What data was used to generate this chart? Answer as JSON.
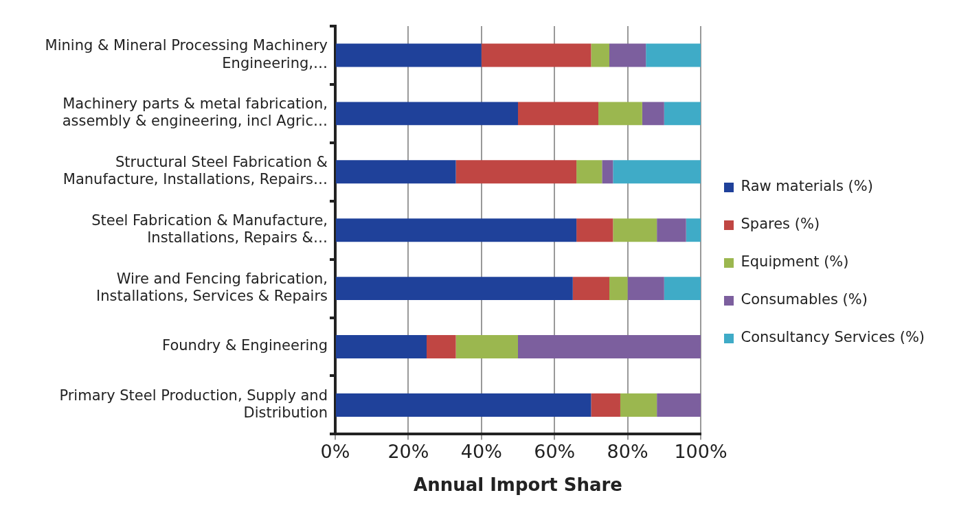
{
  "chart_data": {
    "type": "bar",
    "orientation": "horizontal",
    "stacked": true,
    "xlabel": "Annual Import Share",
    "categories": [
      "Mining & Mineral Processing Machinery Engineering,…",
      "Machinery parts & metal fabrication, assembly & engineering, incl Agric…",
      "Structural Steel Fabrication & Manufacture, Installations, Repairs…",
      "Steel Fabrication & Manufacture, Installations, Repairs &…",
      "Wire and Fencing fabrication, Installations, Services & Repairs",
      "Foundry & Engineering",
      "Primary Steel Production, Supply and Distribution"
    ],
    "series": [
      {
        "name": "Raw materials (%)",
        "color": "#1f419a",
        "values": [
          40,
          50,
          33,
          66,
          65,
          25,
          70
        ]
      },
      {
        "name": "Spares (%)",
        "color": "#c04643",
        "values": [
          30,
          22,
          33,
          10,
          10,
          8,
          8
        ]
      },
      {
        "name": "Equipment (%)",
        "color": "#9bb74f",
        "values": [
          5,
          12,
          7,
          12,
          5,
          17,
          10
        ]
      },
      {
        "name": "Consumables (%)",
        "color": "#7c5f9e",
        "values": [
          10,
          6,
          3,
          8,
          10,
          50,
          12
        ]
      },
      {
        "name": "Consultancy Services (%)",
        "color": "#3fabc7",
        "values": [
          15,
          10,
          24,
          4,
          10,
          0,
          0
        ]
      }
    ],
    "xlim": [
      0,
      100
    ],
    "xticks": [
      {
        "value": 0,
        "label": "0%"
      },
      {
        "value": 20,
        "label": "20%"
      },
      {
        "value": 40,
        "label": "40%"
      },
      {
        "value": 60,
        "label": "60%"
      },
      {
        "value": 80,
        "label": "80%"
      },
      {
        "value": 100,
        "label": "100%"
      }
    ],
    "grid": "x",
    "legend": "right"
  }
}
